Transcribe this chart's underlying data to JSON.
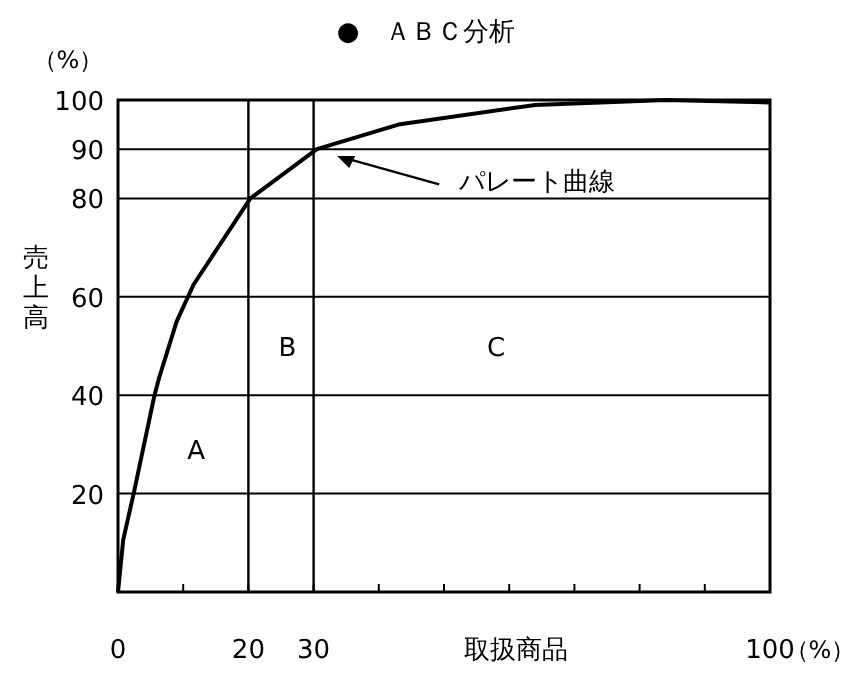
{
  "chart_data": {
    "type": "line",
    "title": "●　ＡＢＣ分析",
    "xlabel": "取扱商品",
    "ylabel": "売上高",
    "xlim": [
      0,
      100
    ],
    "ylim": [
      0,
      100
    ],
    "xticks": [
      0,
      {
        "value": 10,
        "label": null
      },
      20,
      30,
      {
        "value": 40,
        "label": null
      },
      {
        "value": 50,
        "label": null
      },
      {
        "value": 60,
        "label": null
      },
      {
        "value": 70,
        "label": null
      },
      {
        "value": 80,
        "label": null
      },
      {
        "value": 90,
        "label": null
      },
      100
    ],
    "yticks": [
      20,
      40,
      60,
      80,
      90,
      100
    ],
    "grid": "y",
    "legend": false,
    "marker": "none",
    "line_style": "solid",
    "series": [
      {
        "color": "#000000",
        "x": [
          0,
          0.8,
          2.4,
          5.6,
          6.3,
          9,
          11.6,
          20.3,
          30.5,
          43,
          64,
          84,
          100
        ],
        "values": [
          0,
          10.6,
          20,
          40,
          43.5,
          55,
          62.5,
          80,
          90,
          95,
          99,
          100,
          99.5
        ]
      }
    ],
    "ref_lines": [
      {
        "axis": "x",
        "value": 20,
        "color": "#000000"
      },
      {
        "axis": "x",
        "value": 30,
        "color": "#000000"
      }
    ],
    "annotations": [
      {
        "text": "パレート曲線",
        "x": 33,
        "y": 89
      },
      "A",
      "B",
      "C",
      "（%）",
      "（%）"
    ]
  }
}
